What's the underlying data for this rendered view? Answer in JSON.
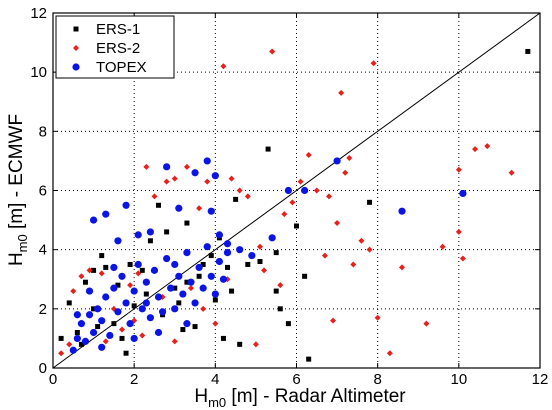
{
  "chart_data": {
    "type": "scatter",
    "title": "",
    "xlabel": {
      "prefix": "H",
      "sub": "m0",
      "suffix": " [m] - Radar Altimeter"
    },
    "ylabel": {
      "prefix": "H",
      "sub": "m0",
      "suffix": " [m] - ECMWF"
    },
    "xlim": [
      0,
      12
    ],
    "ylim": [
      0,
      12
    ],
    "xticks": [
      0,
      2,
      4,
      6,
      8,
      10,
      12
    ],
    "yticks": [
      0,
      2,
      4,
      6,
      8,
      10,
      12
    ],
    "grid": "dotted",
    "legend_position": "top-left",
    "reference_line": {
      "x": [
        0,
        12
      ],
      "y": [
        0,
        12
      ]
    },
    "series": [
      {
        "name": "ERS-1",
        "marker": "square",
        "color": "#000000",
        "points": [
          [
            1.0,
            3.3
          ],
          [
            1.3,
            3.4
          ],
          [
            1.2,
            3.8
          ],
          [
            1.9,
            3.5
          ],
          [
            2.2,
            3.3
          ],
          [
            2.4,
            4.3
          ],
          [
            2.6,
            5.5
          ],
          [
            3.0,
            2.7
          ],
          [
            3.3,
            2.9
          ],
          [
            3.6,
            3.1
          ],
          [
            3.7,
            3.5
          ],
          [
            3.9,
            3.8
          ],
          [
            4.1,
            4.4
          ],
          [
            4.3,
            3.4
          ],
          [
            4.5,
            5.7
          ],
          [
            4.2,
            1.0
          ],
          [
            4.6,
            0.8
          ],
          [
            4.8,
            3.5
          ],
          [
            5.1,
            3.6
          ],
          [
            5.5,
            3.9
          ],
          [
            5.5,
            2.6
          ],
          [
            5.6,
            2.0
          ],
          [
            5.8,
            1.5
          ],
          [
            6.2,
            3.1
          ],
          [
            6.3,
            0.3
          ],
          [
            6.0,
            4.8
          ],
          [
            5.3,
            7.4
          ],
          [
            3.3,
            4.9
          ],
          [
            2.8,
            4.6
          ],
          [
            7.8,
            5.6
          ],
          [
            11.7,
            10.7
          ],
          [
            0.2,
            1.0
          ],
          [
            0.4,
            2.2
          ],
          [
            0.6,
            1.2
          ],
          [
            0.7,
            0.8
          ],
          [
            1.0,
            2.0
          ],
          [
            1.5,
            1.5
          ],
          [
            1.7,
            1.0
          ],
          [
            2.0,
            2.1
          ],
          [
            2.3,
            2.5
          ],
          [
            2.7,
            1.8
          ],
          [
            3.2,
            1.3
          ],
          [
            3.5,
            1.4
          ],
          [
            0.8,
            2.9
          ],
          [
            1.6,
            2.8
          ],
          [
            1.1,
            1.4
          ],
          [
            1.8,
            0.5
          ],
          [
            3.1,
            2.2
          ],
          [
            4.0,
            2.3
          ],
          [
            4.4,
            2.6
          ]
        ]
      },
      {
        "name": "ERS-2",
        "marker": "diamond",
        "color": "#e8201c",
        "points": [
          [
            0.2,
            0.5
          ],
          [
            0.4,
            0.8
          ],
          [
            0.5,
            2.6
          ],
          [
            0.7,
            3.1
          ],
          [
            0.9,
            3.3
          ],
          [
            1.2,
            3.2
          ],
          [
            1.5,
            2.0
          ],
          [
            1.7,
            1.3
          ],
          [
            1.9,
            2.8
          ],
          [
            2.1,
            3.2
          ],
          [
            2.3,
            6.8
          ],
          [
            2.5,
            5.8
          ],
          [
            2.8,
            6.3
          ],
          [
            3.0,
            6.4
          ],
          [
            3.3,
            6.8
          ],
          [
            3.6,
            5.4
          ],
          [
            3.8,
            6.3
          ],
          [
            4.2,
            10.2
          ],
          [
            4.4,
            6.4
          ],
          [
            4.6,
            6.0
          ],
          [
            4.8,
            5.8
          ],
          [
            5.1,
            4.1
          ],
          [
            5.4,
            10.7
          ],
          [
            5.6,
            2.8
          ],
          [
            5.7,
            5.2
          ],
          [
            5.9,
            5.6
          ],
          [
            6.1,
            6.3
          ],
          [
            6.3,
            7.2
          ],
          [
            6.5,
            6.0
          ],
          [
            6.8,
            5.8
          ],
          [
            7.1,
            9.3
          ],
          [
            7.2,
            6.6
          ],
          [
            7.3,
            7.1
          ],
          [
            7.0,
            4.9
          ],
          [
            7.6,
            4.3
          ],
          [
            7.8,
            4.0
          ],
          [
            7.9,
            10.3
          ],
          [
            8.0,
            1.7
          ],
          [
            8.3,
            0.5
          ],
          [
            8.6,
            3.4
          ],
          [
            9.2,
            1.5
          ],
          [
            9.6,
            4.1
          ],
          [
            10.1,
            3.7
          ],
          [
            10.0,
            6.7
          ],
          [
            10.4,
            7.4
          ],
          [
            10.7,
            7.5
          ],
          [
            10.0,
            4.6
          ],
          [
            11.3,
            6.6
          ],
          [
            6.9,
            1.6
          ],
          [
            5.0,
            0.8
          ],
          [
            4.0,
            1.5
          ],
          [
            3.0,
            0.9
          ],
          [
            2.2,
            1.1
          ],
          [
            1.3,
            0.9
          ],
          [
            2.7,
            2.4
          ],
          [
            3.4,
            2.7
          ],
          [
            4.3,
            3.0
          ],
          [
            5.2,
            3.3
          ],
          [
            6.7,
            3.8
          ],
          [
            7.4,
            3.5
          ],
          [
            2.0,
            1.6
          ],
          [
            3.7,
            2.0
          ]
        ]
      },
      {
        "name": "TOPEX",
        "marker": "circle",
        "color": "#0a14e6",
        "points": [
          [
            0.5,
            0.6
          ],
          [
            0.6,
            1.0
          ],
          [
            0.7,
            1.5
          ],
          [
            0.8,
            0.9
          ],
          [
            0.9,
            1.8
          ],
          [
            1.0,
            1.2
          ],
          [
            1.1,
            2.0
          ],
          [
            1.2,
            1.6
          ],
          [
            1.3,
            2.4
          ],
          [
            1.4,
            1.1
          ],
          [
            1.5,
            2.7
          ],
          [
            1.6,
            1.9
          ],
          [
            1.7,
            3.1
          ],
          [
            1.8,
            2.2
          ],
          [
            1.9,
            1.5
          ],
          [
            2.0,
            2.6
          ],
          [
            2.1,
            3.5
          ],
          [
            2.2,
            2.0
          ],
          [
            2.3,
            2.9
          ],
          [
            2.4,
            1.7
          ],
          [
            2.5,
            3.3
          ],
          [
            2.6,
            2.4
          ],
          [
            2.7,
            1.9
          ],
          [
            2.8,
            3.7
          ],
          [
            2.9,
            2.7
          ],
          [
            3.0,
            2.0
          ],
          [
            3.1,
            3.1
          ],
          [
            3.2,
            2.5
          ],
          [
            3.3,
            3.9
          ],
          [
            3.4,
            2.9
          ],
          [
            3.5,
            2.2
          ],
          [
            3.6,
            3.4
          ],
          [
            3.7,
            2.7
          ],
          [
            3.8,
            4.1
          ],
          [
            3.9,
            3.1
          ],
          [
            4.0,
            2.5
          ],
          [
            4.1,
            3.6
          ],
          [
            4.2,
            3.0
          ],
          [
            4.3,
            3.9
          ],
          [
            1.0,
            5.0
          ],
          [
            1.3,
            5.2
          ],
          [
            1.6,
            4.3
          ],
          [
            1.8,
            5.5
          ],
          [
            2.1,
            4.5
          ],
          [
            2.4,
            4.6
          ],
          [
            2.8,
            6.8
          ],
          [
            3.1,
            5.4
          ],
          [
            3.5,
            6.6
          ],
          [
            3.8,
            7.0
          ],
          [
            3.9,
            5.3
          ],
          [
            4.0,
            6.5
          ],
          [
            4.1,
            4.5
          ],
          [
            4.3,
            4.2
          ],
          [
            4.6,
            4.0
          ],
          [
            4.9,
            3.8
          ],
          [
            5.4,
            4.4
          ],
          [
            5.8,
            6.0
          ],
          [
            6.2,
            6.0
          ],
          [
            7.0,
            7.0
          ],
          [
            8.6,
            5.3
          ],
          [
            10.1,
            5.9
          ],
          [
            1.5,
            3.4
          ],
          [
            0.9,
            2.6
          ],
          [
            2.0,
            1.0
          ],
          [
            2.6,
            1.2
          ],
          [
            3.3,
            1.5
          ],
          [
            0.6,
            1.8
          ],
          [
            1.2,
            0.7
          ],
          [
            2.3,
            2.2
          ],
          [
            3.0,
            3.5
          ]
        ]
      }
    ]
  }
}
